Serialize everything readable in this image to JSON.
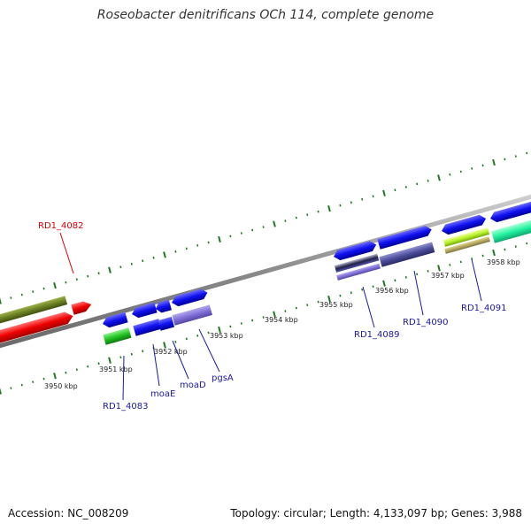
{
  "title": "Roseobacter denitrificans OCh 114, complete genome",
  "footer": {
    "accession": "Accession: NC_008209",
    "summary": "Topology: circular; Length: 4,133,097 bp; Genes: 3,988"
  },
  "colors": {
    "backbone": "#888888",
    "tick": "#1e7a1e",
    "label_blue": "#1a1aa6",
    "label_red": "#dd0000"
  },
  "scale_labels": [
    "3950 kbp",
    "3951 kbp",
    "3952 kbp",
    "3953 kbp",
    "3954 kbp",
    "3955 kbp",
    "3956 kbp",
    "3957 kbp",
    "3958 kbp"
  ],
  "gene_labels": [
    {
      "text": "RD1_4082",
      "color": "#dd0000"
    },
    {
      "text": "RD1_4083",
      "color": "#1a1aa6"
    },
    {
      "text": "moaE",
      "color": "#1a1aa6"
    },
    {
      "text": "moaD",
      "color": "#1a1aa6"
    },
    {
      "text": "pgsA",
      "color": "#1a1aa6"
    },
    {
      "text": "RD1_4089",
      "color": "#1a1aa6"
    },
    {
      "text": "RD1_4090",
      "color": "#1a1aa6"
    },
    {
      "text": "RD1_4091",
      "color": "#1a1aa6"
    }
  ]
}
